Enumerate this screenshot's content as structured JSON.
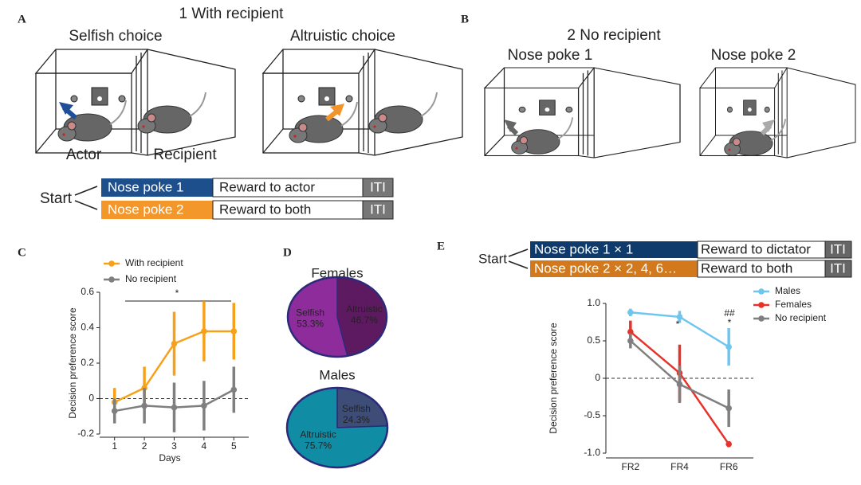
{
  "panels": {
    "A": {
      "label": "A",
      "title": "1 With recipient",
      "left": "Selfish choice",
      "right": "Altruistic choice",
      "actor": "Actor",
      "recipient": "Recipient",
      "start": "Start",
      "rows": [
        [
          "Nose poke 1",
          "Reward to actor",
          "ITI"
        ],
        [
          "Nose poke 2",
          "Reward to both",
          "ITI"
        ]
      ]
    },
    "B": {
      "label": "B",
      "title": "2 No recipient",
      "left": "Nose poke 1",
      "right": "Nose poke 2"
    },
    "C": {
      "label": "C"
    },
    "D": {
      "label": "D"
    },
    "E": {
      "label": "E",
      "start": "Start",
      "rows": [
        [
          "Nose poke 1 × 1",
          "Reward to dictator",
          "ITI"
        ],
        [
          "Nose poke 2 × 2, 4, 6…",
          "Reward to both",
          "ITI"
        ]
      ]
    }
  },
  "chart_data": [
    {
      "type": "line",
      "x_label": "Days",
      "y_label": "Decision preference score",
      "x": [
        1,
        2,
        3,
        4,
        5
      ],
      "xlim": [
        0.5,
        5.5
      ],
      "xticks": [
        1,
        2,
        3,
        4,
        5
      ],
      "ylim": [
        -0.2,
        0.6
      ],
      "yticks": [
        0.6,
        0.4,
        0.2,
        0,
        -0.2
      ],
      "series": [
        {
          "name": "With recipient",
          "color": "#f7a11a",
          "values": [
            -0.02,
            0.06,
            0.31,
            0.38,
            0.38
          ],
          "errors": [
            0.08,
            0.12,
            0.18,
            0.17,
            0.16
          ]
        },
        {
          "name": "No recipient",
          "color": "#7f7f7f",
          "values": [
            -0.07,
            -0.04,
            -0.05,
            -0.04,
            0.05
          ],
          "errors": [
            0.07,
            0.1,
            0.14,
            0.14,
            0.13
          ]
        }
      ],
      "annotations": [
        "*"
      ]
    },
    {
      "type": "pie",
      "title": "Females",
      "categories": [
        "Altruistic",
        "Selfish"
      ],
      "values": [
        46.7,
        53.3
      ],
      "value_labels": [
        "46.7%",
        "53.3%"
      ],
      "colors": [
        "#5e1a61",
        "#8f2c9c"
      ]
    },
    {
      "type": "pie",
      "title": "Males",
      "categories": [
        "Selfish",
        "Altruistic"
      ],
      "values": [
        24.3,
        75.7
      ],
      "value_labels": [
        "24.3%",
        "75.7%"
      ],
      "colors": [
        "#3d4d78",
        "#118ca5"
      ]
    },
    {
      "type": "line",
      "y_label": "Decision preference score",
      "categories": [
        "FR2",
        "FR4",
        "FR6"
      ],
      "ylim": [
        -1.0,
        1.0
      ],
      "yticks": [
        {
          "value": 1.0,
          "label": "1.0"
        },
        0.5,
        0,
        -0.5,
        {
          "value": -1.0,
          "label": "-1.0"
        }
      ],
      "series": [
        {
          "name": "Males",
          "color": "#6ec6ee",
          "values": [
            0.88,
            0.82,
            0.42
          ],
          "errors": [
            0.05,
            0.08,
            0.25
          ]
        },
        {
          "name": "Females",
          "color": "#e6322a",
          "values": [
            0.62,
            0.07,
            -0.88
          ],
          "errors": [
            0.15,
            0.38,
            0.04
          ]
        },
        {
          "name": "No recipient",
          "color": "#7f7f7f",
          "values": [
            0.5,
            -0.08,
            -0.4
          ],
          "errors": [
            0.1,
            0.25,
            0.25
          ]
        }
      ],
      "annotations": [
        "*",
        "##",
        "*"
      ]
    }
  ]
}
